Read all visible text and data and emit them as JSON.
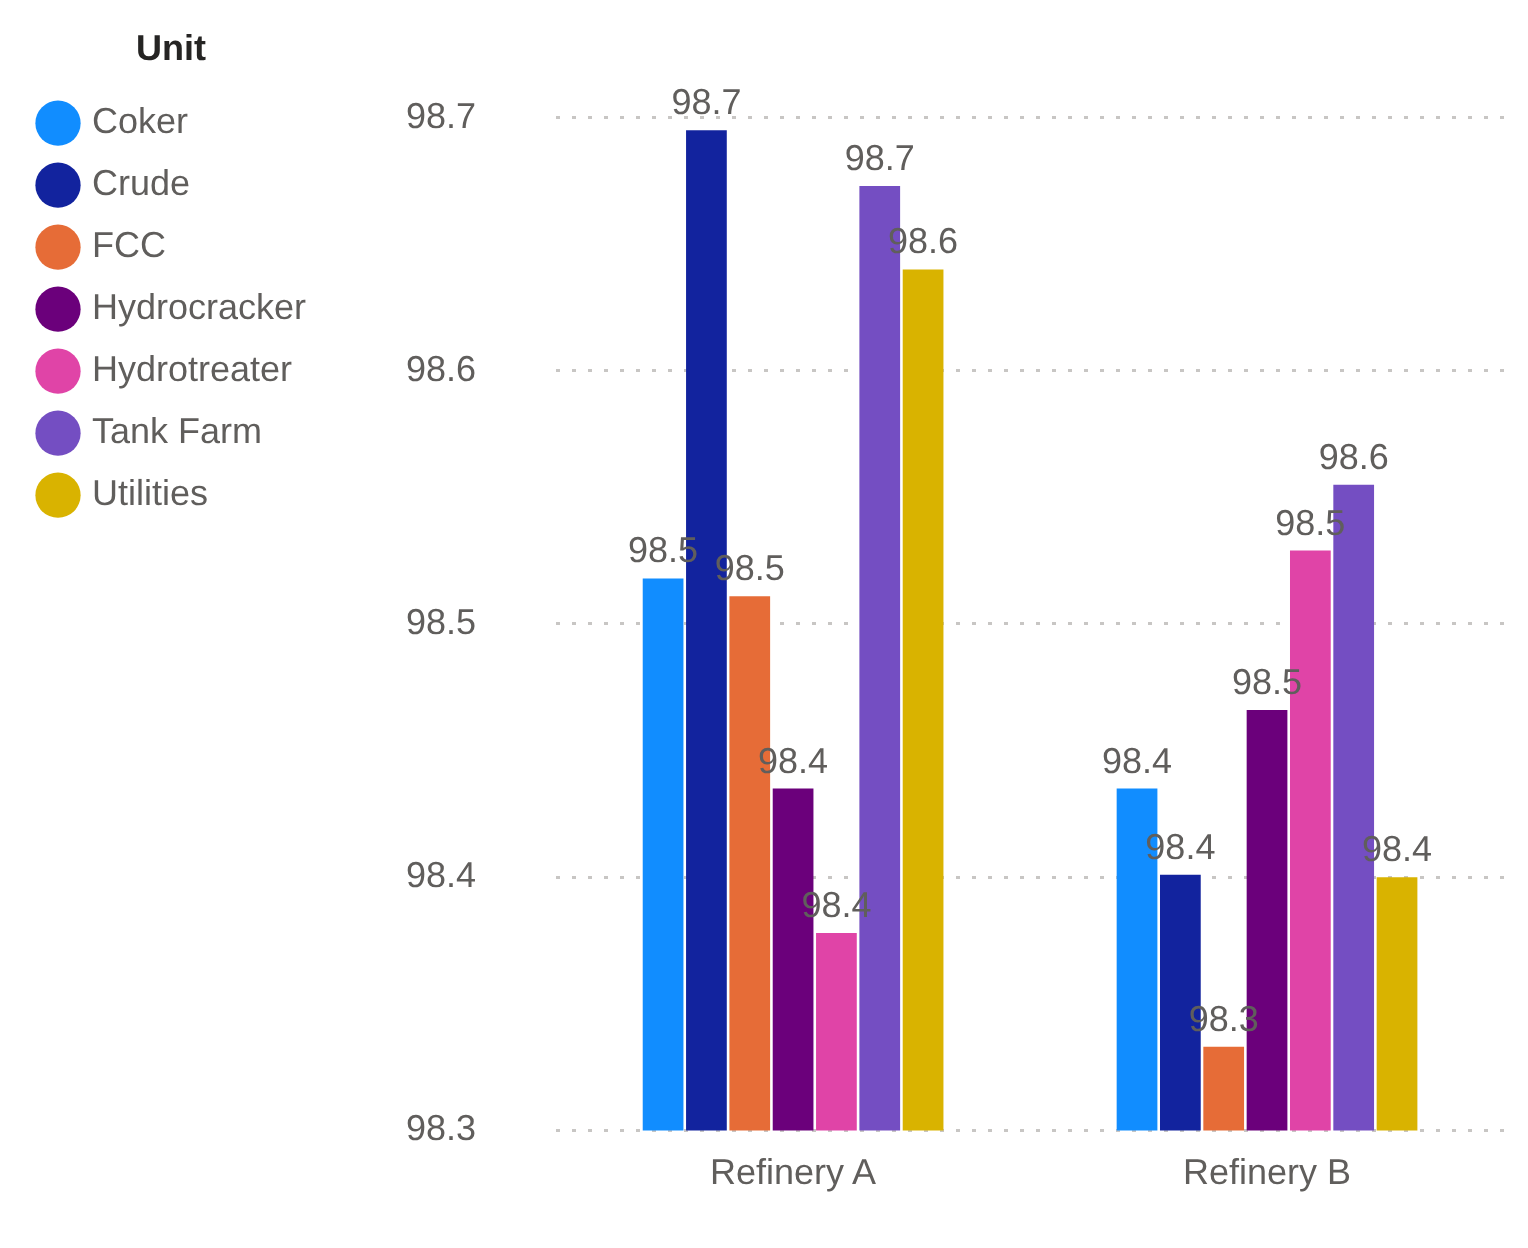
{
  "chart_data": {
    "type": "bar",
    "legend_title": "Unit",
    "categories": [
      "Refinery A",
      "Refinery B"
    ],
    "series": [
      {
        "name": "Coker",
        "color": "#118dff",
        "values": [
          98.518,
          98.435
        ],
        "value_labels": [
          "98.5",
          "98.4"
        ]
      },
      {
        "name": "Crude",
        "color": "#12239e",
        "values": [
          98.695,
          98.401
        ],
        "value_labels": [
          "98.7",
          "98.4"
        ]
      },
      {
        "name": "FCC",
        "color": "#e66c37",
        "values": [
          98.511,
          98.333
        ],
        "value_labels": [
          "98.5",
          "98.3"
        ]
      },
      {
        "name": "Hydrocracker",
        "color": "#6b007b",
        "values": [
          98.435,
          98.466
        ],
        "value_labels": [
          "98.4",
          "98.5"
        ]
      },
      {
        "name": "Hydrotreater",
        "color": "#e044a7",
        "values": [
          98.378,
          98.529
        ],
        "value_labels": [
          "98.4",
          "98.5"
        ]
      },
      {
        "name": "Tank Farm",
        "color": "#744ec2",
        "values": [
          98.673,
          98.555
        ],
        "value_labels": [
          "98.7",
          "98.6"
        ]
      },
      {
        "name": "Utilities",
        "color": "#d9b300",
        "values": [
          98.64,
          98.4
        ],
        "value_labels": [
          "98.6",
          "98.4"
        ]
      }
    ],
    "ylim": [
      98.3,
      98.7
    ],
    "yticks": [
      98.3,
      98.4,
      98.5,
      98.6,
      98.7
    ],
    "grid": "y",
    "legend": "top left"
  }
}
